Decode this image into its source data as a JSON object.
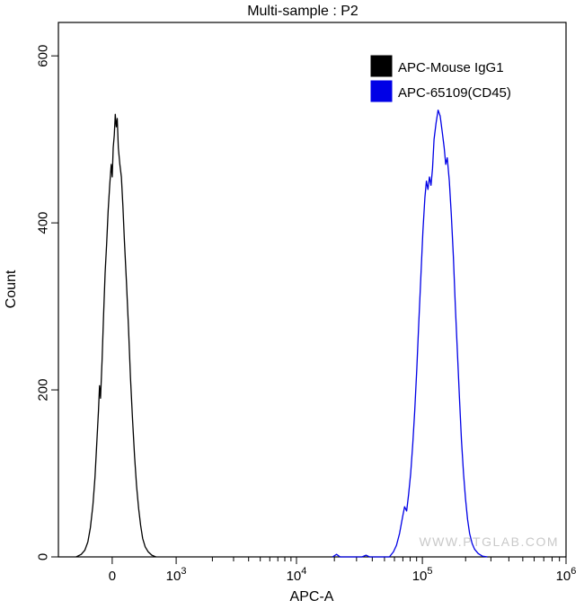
{
  "title": "Multi-sample : P2",
  "watermark": "WWW.PTGLAB.COM",
  "legend": [
    {
      "label": "APC-Mouse IgG1",
      "color": "#000000"
    },
    {
      "label": "APC-65109(CD45)",
      "color": "#0000e6"
    }
  ],
  "chart_data": {
    "type": "line",
    "subtype": "flow-cytometry-histogram",
    "title": "Multi-sample : P2",
    "xlabel": "APC-A",
    "ylabel": "Count",
    "ylim": [
      0,
      640
    ],
    "y_ticks": [
      0,
      200,
      400,
      600
    ],
    "x_scale": "biexponential-log",
    "x_ticks": [
      {
        "frac": 0.106,
        "base": "0"
      },
      {
        "frac": 0.232,
        "base": "10",
        "exp": "3"
      },
      {
        "frac": 0.469,
        "base": "10",
        "exp": "4"
      },
      {
        "frac": 0.717,
        "base": "10",
        "exp": "5"
      },
      {
        "frac": 1.0,
        "base": "10",
        "exp": "6"
      }
    ],
    "series": [
      {
        "name": "APC-Mouse IgG1",
        "color": "#000000",
        "peak_x_label": "near 0 (unstained control)",
        "peak_count": 530,
        "points": [
          [
            0.035,
            0
          ],
          [
            0.045,
            3
          ],
          [
            0.052,
            8
          ],
          [
            0.058,
            18
          ],
          [
            0.063,
            35
          ],
          [
            0.068,
            62
          ],
          [
            0.072,
            95
          ],
          [
            0.076,
            140
          ],
          [
            0.079,
            175
          ],
          [
            0.081,
            205
          ],
          [
            0.083,
            190
          ],
          [
            0.086,
            235
          ],
          [
            0.089,
            290
          ],
          [
            0.092,
            340
          ],
          [
            0.095,
            375
          ],
          [
            0.098,
            415
          ],
          [
            0.101,
            445
          ],
          [
            0.104,
            470
          ],
          [
            0.106,
            455
          ],
          [
            0.108,
            490
          ],
          [
            0.11,
            505
          ],
          [
            0.112,
            530
          ],
          [
            0.114,
            515
          ],
          [
            0.116,
            525
          ],
          [
            0.118,
            490
          ],
          [
            0.121,
            470
          ],
          [
            0.124,
            455
          ],
          [
            0.127,
            420
          ],
          [
            0.13,
            380
          ],
          [
            0.134,
            330
          ],
          [
            0.138,
            275
          ],
          [
            0.142,
            215
          ],
          [
            0.146,
            165
          ],
          [
            0.15,
            120
          ],
          [
            0.154,
            85
          ],
          [
            0.158,
            58
          ],
          [
            0.162,
            38
          ],
          [
            0.166,
            22
          ],
          [
            0.171,
            12
          ],
          [
            0.177,
            6
          ],
          [
            0.184,
            2
          ],
          [
            0.192,
            0
          ]
        ]
      },
      {
        "name": "APC-65109(CD45)",
        "color": "#0000e6",
        "peak_x_label": "~1.2e5",
        "peak_count": 535,
        "points": [
          [
            0.54,
            0
          ],
          [
            0.548,
            3
          ],
          [
            0.555,
            0
          ],
          [
            0.598,
            0
          ],
          [
            0.606,
            2
          ],
          [
            0.613,
            0
          ],
          [
            0.652,
            0
          ],
          [
            0.66,
            6
          ],
          [
            0.666,
            14
          ],
          [
            0.672,
            28
          ],
          [
            0.678,
            48
          ],
          [
            0.682,
            60
          ],
          [
            0.686,
            55
          ],
          [
            0.69,
            75
          ],
          [
            0.694,
            100
          ],
          [
            0.698,
            135
          ],
          [
            0.702,
            175
          ],
          [
            0.706,
            225
          ],
          [
            0.71,
            280
          ],
          [
            0.714,
            335
          ],
          [
            0.718,
            390
          ],
          [
            0.722,
            430
          ],
          [
            0.725,
            450
          ],
          [
            0.728,
            440
          ],
          [
            0.731,
            455
          ],
          [
            0.734,
            445
          ],
          [
            0.737,
            465
          ],
          [
            0.74,
            500
          ],
          [
            0.744,
            520
          ],
          [
            0.748,
            535
          ],
          [
            0.752,
            528
          ],
          [
            0.756,
            510
          ],
          [
            0.76,
            490
          ],
          [
            0.763,
            470
          ],
          [
            0.766,
            478
          ],
          [
            0.77,
            450
          ],
          [
            0.774,
            410
          ],
          [
            0.778,
            360
          ],
          [
            0.782,
            300
          ],
          [
            0.786,
            245
          ],
          [
            0.79,
            190
          ],
          [
            0.794,
            140
          ],
          [
            0.798,
            100
          ],
          [
            0.802,
            70
          ],
          [
            0.806,
            45
          ],
          [
            0.81,
            28
          ],
          [
            0.815,
            16
          ],
          [
            0.82,
            9
          ],
          [
            0.827,
            4
          ],
          [
            0.835,
            1
          ],
          [
            0.845,
            0
          ]
        ]
      }
    ]
  }
}
